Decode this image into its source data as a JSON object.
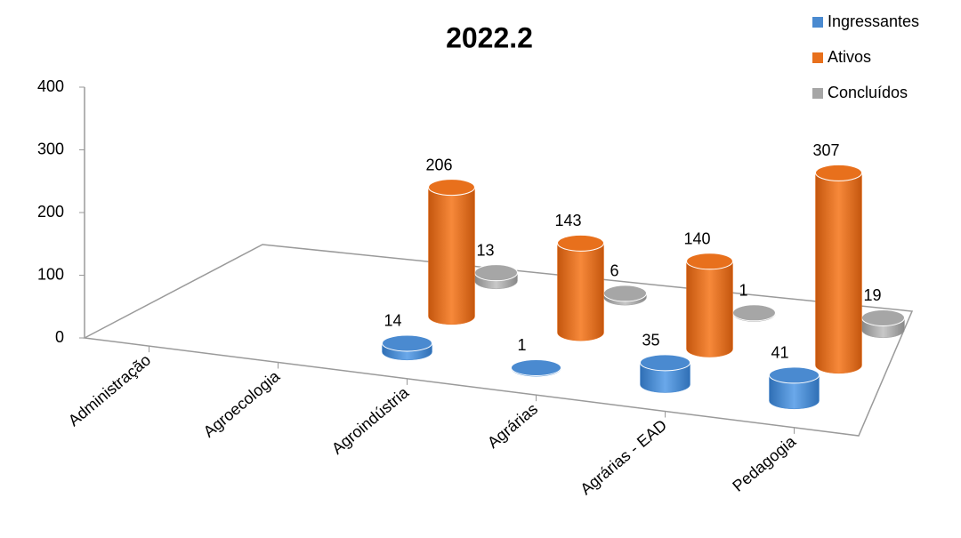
{
  "chart_data": {
    "type": "bar3d",
    "title": "2022.2",
    "categories": [
      "Administração",
      "Agroecologia",
      "Agroindústria",
      "Agrárias",
      "Agrárias - EAD",
      "Pedagogia"
    ],
    "series": [
      {
        "name": "Ingressantes",
        "color": "#4a8ad0",
        "values": [
          null,
          null,
          14,
          1,
          35,
          41
        ]
      },
      {
        "name": "Ativos",
        "color": "#e8701c",
        "values": [
          null,
          null,
          206,
          143,
          140,
          307
        ]
      },
      {
        "name": "Concluídos",
        "color": "#a6a6a6",
        "values": [
          null,
          null,
          13,
          6,
          1,
          19
        ]
      }
    ],
    "ylim": [
      0,
      400
    ],
    "yticks": [
      0,
      100,
      200,
      300,
      400
    ],
    "legend": "top-right"
  }
}
